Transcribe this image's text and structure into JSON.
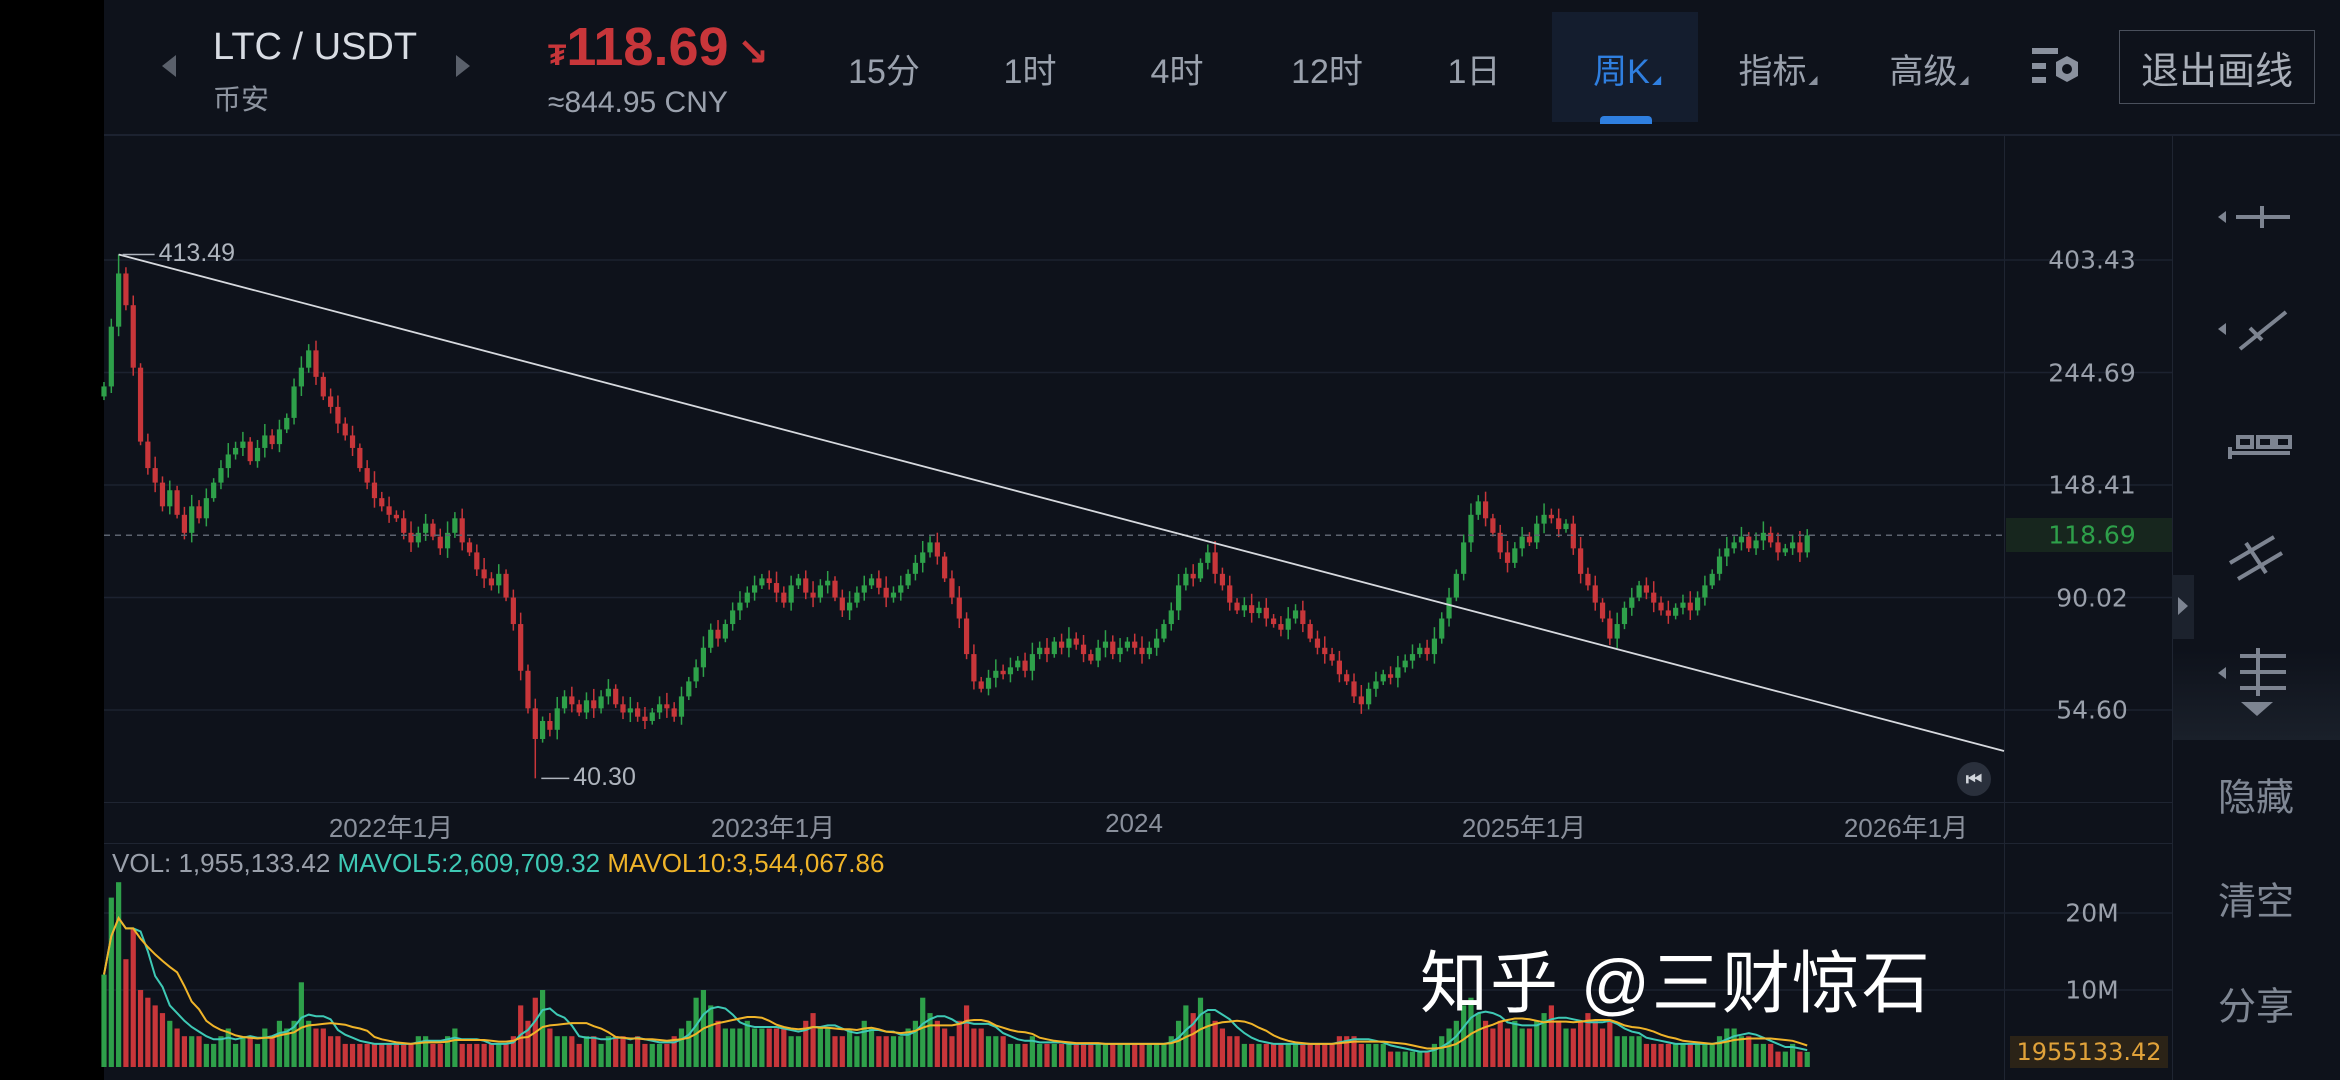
{
  "header": {
    "pair": "LTC / USDT",
    "exchange": "币安",
    "currency_symbol": "₮",
    "price": "118.69",
    "price_direction_icon": "arrow-down-right-icon",
    "price_cny": "≈844.95 CNY",
    "tabs": [
      {
        "label": "15分",
        "active": false
      },
      {
        "label": "1时",
        "active": false
      },
      {
        "label": "4时",
        "active": false
      },
      {
        "label": "12时",
        "active": false
      },
      {
        "label": "1日",
        "active": false
      },
      {
        "label": "周K",
        "active": true
      },
      {
        "label": "指标",
        "active": false
      },
      {
        "label": "高级",
        "active": false
      }
    ],
    "settings_icon": "chart-settings-icon",
    "exit_drawing_label": "退出画线"
  },
  "sidebar": {
    "tools": [
      "horizontal-line-icon",
      "trend-line-icon",
      "measure-ruler-icon",
      "parallel-channel-icon",
      "fibonacci-lines-icon"
    ],
    "hide_label": "隐藏",
    "clear_label": "清空",
    "share_label": "分享"
  },
  "colors": {
    "up": "#2ea04a",
    "down": "#c8363a",
    "accent": "#2f7fe0",
    "mavol5": "#3ec9b5",
    "mavol10": "#f0b429",
    "background": "#0e121b"
  },
  "watermark": "知乎 @三财惊石",
  "chart_data": {
    "type": "candlestick",
    "interval": "weekly",
    "scale": "log",
    "price_ticks": [
      403.43,
      244.69,
      148.41,
      90.02,
      54.6
    ],
    "price_tick_labels": [
      "403.43",
      "244.69",
      "148.41",
      "90.02",
      "54.60"
    ],
    "current_price": "118.69",
    "high_label": "413.49",
    "low_label": "40.30",
    "x_tick_labels": [
      "2022年1月",
      "2023年1月",
      "2024",
      "2025年1月",
      "2026年1月"
    ],
    "closes": [
      230,
      300,
      380,
      330,
      250,
      180,
      160,
      150,
      135,
      145,
      130,
      120,
      135,
      128,
      140,
      150,
      160,
      170,
      175,
      180,
      165,
      175,
      185,
      178,
      190,
      200,
      230,
      250,
      270,
      240,
      220,
      210,
      195,
      185,
      175,
      160,
      150,
      140,
      135,
      130,
      128,
      120,
      115,
      120,
      125,
      118,
      112,
      120,
      128,
      115,
      110,
      102,
      98,
      95,
      100,
      90,
      80,
      65,
      55,
      48,
      52,
      50,
      55,
      58,
      56,
      54,
      57,
      55,
      58,
      60,
      56,
      54,
      55,
      53,
      52,
      54,
      56,
      55,
      53,
      58,
      62,
      66,
      72,
      78,
      75,
      80,
      85,
      88,
      92,
      95,
      98,
      96,
      92,
      88,
      95,
      98,
      92,
      90,
      95,
      97,
      90,
      85,
      88,
      92,
      95,
      98,
      94,
      90,
      92,
      95,
      100,
      105,
      110,
      115,
      108,
      98,
      90,
      82,
      70,
      62,
      60,
      63,
      65,
      64,
      66,
      68,
      65,
      70,
      72,
      70,
      74,
      72,
      75,
      73,
      70,
      68,
      72,
      74,
      70,
      72,
      74,
      72,
      70,
      72,
      75,
      80,
      85,
      95,
      100,
      98,
      105,
      110,
      100,
      95,
      88,
      85,
      87,
      84,
      86,
      82,
      80,
      78,
      82,
      85,
      80,
      75,
      72,
      70,
      68,
      64,
      62,
      58,
      56,
      60,
      62,
      64,
      63,
      66,
      68,
      70,
      72,
      70,
      75,
      82,
      90,
      100,
      115,
      130,
      138,
      128,
      120,
      110,
      105,
      112,
      118,
      115,
      125,
      130,
      128,
      122,
      125,
      112,
      100,
      95,
      88,
      82,
      75,
      80,
      86,
      90,
      95,
      92,
      88,
      85,
      83,
      86,
      88,
      85,
      90,
      95,
      100,
      108,
      112,
      115,
      118,
      112,
      116,
      120,
      115,
      110,
      112,
      115,
      110,
      118.69
    ],
    "volume": {
      "label": "VOL: 1,955,133.42",
      "mavol5_label": "MAVOL5:2,609,709.32",
      "mavol10_label": "MAVOL10:3,544,067.86",
      "tick_labels": [
        "20M",
        "10M"
      ],
      "current_tag": "1955133.42",
      "values_millions": [
        12,
        22,
        24,
        14,
        18,
        10,
        9,
        8,
        7,
        6,
        5,
        4,
        4,
        4,
        3,
        3,
        4,
        5,
        3,
        4,
        4,
        3,
        5,
        4,
        6,
        5,
        6,
        11,
        6,
        5,
        5,
        4,
        4,
        3,
        3,
        3,
        3,
        3,
        3,
        3,
        3,
        3,
        3,
        4,
        4,
        3,
        3,
        4,
        5,
        3,
        3,
        3,
        3,
        3,
        3,
        3,
        4,
        8,
        6,
        9,
        10,
        5,
        4,
        4,
        4,
        3,
        4,
        4,
        3,
        4,
        4,
        4,
        3,
        4,
        3,
        3,
        3,
        3,
        4,
        5,
        6,
        9,
        10,
        8,
        6,
        5,
        5,
        5,
        6,
        5,
        5,
        5,
        5,
        5,
        4,
        4,
        6,
        7,
        5,
        5,
        4,
        4,
        5,
        4,
        6,
        5,
        4,
        4,
        4,
        4,
        5,
        6,
        9,
        7,
        6,
        5,
        4,
        6,
        8,
        5,
        5,
        4,
        4,
        4,
        3,
        3,
        3,
        4,
        3,
        3,
        3,
        3,
        3,
        3,
        3,
        3,
        3,
        3,
        3,
        3,
        3,
        3,
        3,
        3,
        3,
        3,
        4,
        6,
        8,
        7,
        9,
        7,
        6,
        5,
        4,
        4,
        3,
        3,
        3,
        3,
        3,
        3,
        3,
        3,
        3,
        3,
        3,
        3,
        3,
        4,
        4,
        4,
        3,
        3,
        3,
        3,
        2,
        2,
        2,
        2,
        2,
        2,
        3,
        4,
        5,
        6,
        8,
        9,
        7,
        6,
        5,
        6,
        5,
        6,
        5,
        5,
        6,
        7,
        8,
        6,
        5,
        5,
        6,
        7,
        6,
        5,
        6,
        4,
        4,
        4,
        4,
        3,
        3,
        3,
        3,
        3,
        3,
        3,
        3,
        3,
        3,
        4,
        5,
        5,
        4,
        4,
        3,
        3,
        3,
        2,
        2,
        3,
        2,
        1.96
      ]
    },
    "drawing": {
      "type": "trendline",
      "start_price": 413.49,
      "end_price": 45.5
    }
  }
}
